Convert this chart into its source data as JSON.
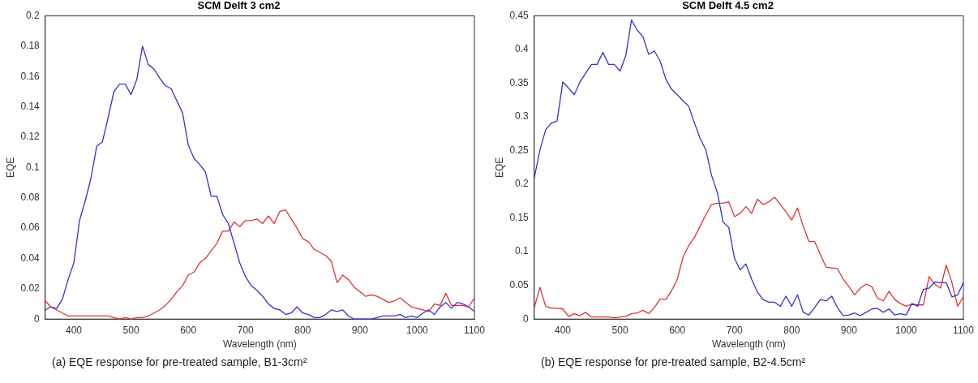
{
  "chart_data": [
    {
      "type": "line",
      "title": "SCM Delft 3 cm2",
      "xlabel": "Wavelength (nm)",
      "ylabel": "EQE",
      "x": [
        350,
        360,
        370,
        380,
        390,
        400,
        410,
        420,
        430,
        440,
        450,
        460,
        470,
        480,
        490,
        500,
        510,
        520,
        530,
        540,
        550,
        560,
        570,
        580,
        590,
        600,
        610,
        620,
        630,
        640,
        650,
        660,
        670,
        680,
        690,
        700,
        710,
        720,
        730,
        740,
        750,
        760,
        770,
        780,
        790,
        800,
        810,
        820,
        830,
        840,
        850,
        860,
        870,
        880,
        890,
        900,
        910,
        920,
        930,
        940,
        950,
        960,
        970,
        980,
        990,
        1000,
        1010,
        1020,
        1030,
        1040,
        1050,
        1060,
        1070,
        1080,
        1090,
        1100
      ],
      "series": [
        {
          "color": "#3333cc",
          "values": [
            0.006,
            0.008,
            0.007,
            0.013,
            0.026,
            0.037,
            0.065,
            0.078,
            0.093,
            0.114,
            0.117,
            0.133,
            0.15,
            0.155,
            0.155,
            0.148,
            0.158,
            0.18,
            0.168,
            0.165,
            0.159,
            0.154,
            0.152,
            0.144,
            0.136,
            0.115,
            0.106,
            0.102,
            0.097,
            0.081,
            0.081,
            0.069,
            0.063,
            0.05,
            0.037,
            0.028,
            0.022,
            0.019,
            0.015,
            0.01,
            0.007,
            0.006,
            0.003,
            0.004,
            0.008,
            0.004,
            0.003,
            0.001,
            0.001,
            0.003,
            0.006,
            0.005,
            0.006,
            0.002,
            0,
            0,
            0,
            0,
            0.001,
            0.002,
            0.002,
            0.002,
            0.003,
            0.001,
            0.002,
            0.001,
            0.004,
            0.006,
            0.003,
            0.008,
            0.011,
            0.007,
            0.011,
            0.01,
            0.008,
            0.005
          ]
        },
        {
          "color": "#dd3333",
          "values": [
            0.012,
            0.008,
            0.006,
            0.004,
            0.002,
            0.002,
            0.002,
            0.002,
            0.002,
            0.002,
            0.002,
            0.002,
            0.001,
            0,
            0.001,
            0,
            0.001,
            0.001,
            0.002,
            0.004,
            0.006,
            0.009,
            0.013,
            0.018,
            0.022,
            0.029,
            0.031,
            0.037,
            0.04,
            0.045,
            0.05,
            0.058,
            0.058,
            0.064,
            0.061,
            0.065,
            0.065,
            0.066,
            0.063,
            0.068,
            0.063,
            0.071,
            0.072,
            0.066,
            0.06,
            0.053,
            0.051,
            0.046,
            0.044,
            0.042,
            0.038,
            0.024,
            0.029,
            0.026,
            0.021,
            0.018,
            0.015,
            0.016,
            0.015,
            0.013,
            0.011,
            0.012,
            0.014,
            0.011,
            0.008,
            0.007,
            0.006,
            0.005,
            0.01,
            0.009,
            0.017,
            0.009,
            0.009,
            0.009,
            0.008,
            0.014
          ]
        }
      ],
      "xlim": [
        350,
        1100
      ],
      "xticks": [
        400,
        500,
        600,
        700,
        800,
        900,
        1000,
        1100
      ],
      "ylim": [
        0,
        0.2
      ],
      "yticks": [
        0,
        0.02,
        0.04,
        0.06,
        0.08,
        0.1,
        0.12,
        0.14,
        0.16,
        0.18,
        0.2
      ],
      "marker": "none",
      "line_style": "solid",
      "grid": false,
      "annotations": [
        "(a) EQE response for pre-treated sample, B1-3cm²"
      ]
    },
    {
      "type": "line",
      "title": "SCM Delft 4.5 cm2",
      "xlabel": "Wavelength (nm)",
      "ylabel": "EQE",
      "x": [
        350,
        360,
        370,
        380,
        390,
        400,
        410,
        420,
        430,
        440,
        450,
        460,
        470,
        480,
        490,
        500,
        510,
        520,
        530,
        540,
        550,
        560,
        570,
        580,
        590,
        600,
        610,
        620,
        630,
        640,
        650,
        660,
        670,
        680,
        690,
        700,
        710,
        720,
        730,
        740,
        750,
        760,
        770,
        780,
        790,
        800,
        810,
        820,
        830,
        840,
        850,
        860,
        870,
        880,
        890,
        900,
        910,
        920,
        930,
        940,
        950,
        960,
        970,
        980,
        990,
        1000,
        1010,
        1020,
        1030,
        1040,
        1050,
        1060,
        1070,
        1080,
        1090,
        1100
      ],
      "series": [
        {
          "color": "#3333cc",
          "values": [
            0.209,
            0.251,
            0.281,
            0.291,
            0.294,
            0.352,
            0.343,
            0.333,
            0.352,
            0.365,
            0.378,
            0.378,
            0.396,
            0.378,
            0.378,
            0.368,
            0.391,
            0.444,
            0.429,
            0.419,
            0.393,
            0.398,
            0.383,
            0.356,
            0.341,
            0.333,
            0.324,
            0.316,
            0.291,
            0.268,
            0.251,
            0.213,
            0.188,
            0.144,
            0.136,
            0.09,
            0.073,
            0.082,
            0.059,
            0.04,
            0.029,
            0.025,
            0.025,
            0.019,
            0.034,
            0.019,
            0.036,
            0.01,
            0.006,
            0.017,
            0.029,
            0.027,
            0.034,
            0.017,
            0.005,
            0.006,
            0.009,
            0.005,
            0.01,
            0.015,
            0.016,
            0.01,
            0.015,
            0.006,
            0.008,
            0.006,
            0.023,
            0.019,
            0.044,
            0.046,
            0.055,
            0.054,
            0.054,
            0.033,
            0.036,
            0.054
          ]
        },
        {
          "color": "#dd3333",
          "values": [
            0.017,
            0.047,
            0.019,
            0.016,
            0.016,
            0.015,
            0.004,
            0.008,
            0.005,
            0.01,
            0.003,
            0.003,
            0.003,
            0.003,
            0.002,
            0.003,
            0.004,
            0.008,
            0.009,
            0.013,
            0.008,
            0.017,
            0.03,
            0.029,
            0.042,
            0.059,
            0.092,
            0.109,
            0.121,
            0.138,
            0.155,
            0.17,
            0.172,
            0.172,
            0.174,
            0.152,
            0.157,
            0.167,
            0.157,
            0.178,
            0.17,
            0.174,
            0.181,
            0.17,
            0.159,
            0.147,
            0.165,
            0.138,
            0.115,
            0.115,
            0.096,
            0.077,
            0.076,
            0.075,
            0.059,
            0.048,
            0.036,
            0.046,
            0.052,
            0.048,
            0.031,
            0.027,
            0.041,
            0.029,
            0.023,
            0.019,
            0.022,
            0.021,
            0.021,
            0.063,
            0.052,
            0.046,
            0.08,
            0.054,
            0.019,
            0.033
          ]
        }
      ],
      "xlim": [
        350,
        1100
      ],
      "xticks": [
        400,
        500,
        600,
        700,
        800,
        900,
        1000,
        1100
      ],
      "ylim": [
        0,
        0.45
      ],
      "yticks": [
        0,
        0.05,
        0.1,
        0.15,
        0.2,
        0.25,
        0.3,
        0.35,
        0.4,
        0.45
      ],
      "marker": "none",
      "line_style": "solid",
      "grid": false,
      "annotations": [
        "(b) EQE response for pre-treated sample, B2-4.5cm²"
      ]
    }
  ]
}
